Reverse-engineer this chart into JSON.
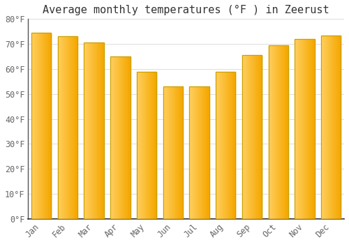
{
  "title": "Average monthly temperatures (°F ) in Zeerust",
  "categories": [
    "Jan",
    "Feb",
    "Mar",
    "Apr",
    "May",
    "Jun",
    "Jul",
    "Aug",
    "Sep",
    "Oct",
    "Nov",
    "Dec"
  ],
  "values": [
    74.5,
    73.0,
    70.5,
    65.0,
    59.0,
    53.0,
    53.0,
    59.0,
    65.5,
    69.5,
    72.0,
    73.5
  ],
  "bar_color_left": "#FFD060",
  "bar_color_right": "#F5A800",
  "bar_edge_color": "#C8A000",
  "ylim": [
    0,
    80
  ],
  "yticks": [
    0,
    10,
    20,
    30,
    40,
    50,
    60,
    70,
    80
  ],
  "ytick_labels": [
    "0°F",
    "10°F",
    "20°F",
    "30°F",
    "40°F",
    "50°F",
    "60°F",
    "70°F",
    "80°F"
  ],
  "background_color": "#FFFFFF",
  "grid_color": "#DDDDDD",
  "title_fontsize": 11,
  "tick_fontsize": 8.5,
  "bar_width": 0.75,
  "n_gradient_steps": 50
}
